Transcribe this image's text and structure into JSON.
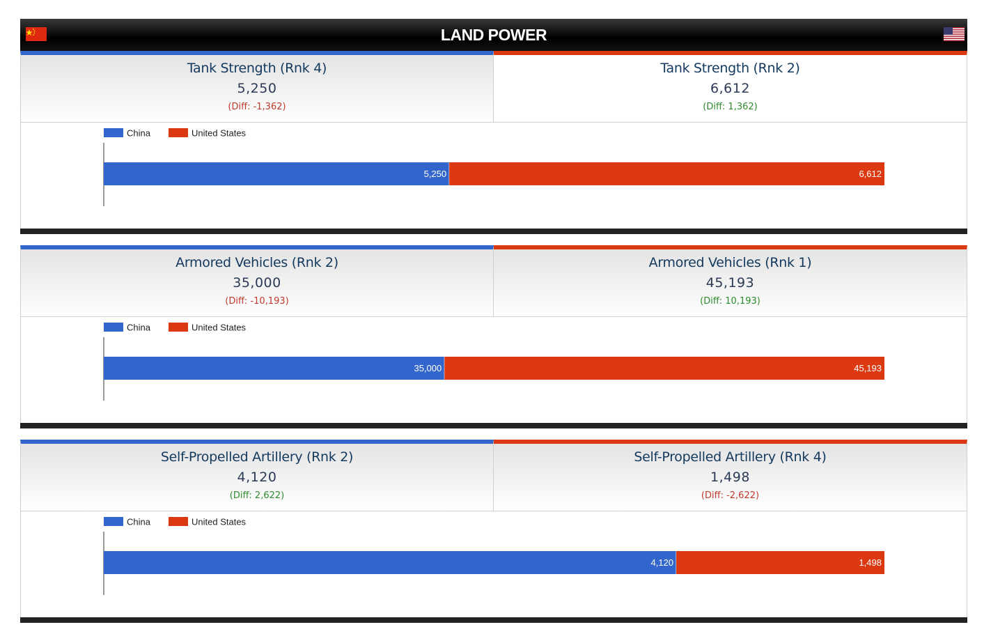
{
  "header": {
    "title": "LAND POWER",
    "left_flag_icon": "china-flag-icon",
    "right_flag_icon": "united-states-flag-icon"
  },
  "colors": {
    "china": "#3366cc",
    "united_states": "#dc3912",
    "negative_diff": "#c0392b",
    "positive_diff": "#2e8b2e"
  },
  "legend": {
    "china": "China",
    "united_states": "United States"
  },
  "sections": [
    {
      "left": {
        "title": "Tank Strength (Rnk 4)",
        "value": "5,250",
        "diff": "(Diff: -1,362)",
        "diff_sign": "neg"
      },
      "right": {
        "title": "Tank Strength (Rnk 2)",
        "value": "6,612",
        "diff": "(Diff: 1,362)",
        "diff_sign": "pos"
      }
    },
    {
      "left": {
        "title": "Armored Vehicles (Rnk 2)",
        "value": "35,000",
        "diff": "(Diff: -10,193)",
        "diff_sign": "neg"
      },
      "right": {
        "title": "Armored Vehicles (Rnk 1)",
        "value": "45,193",
        "diff": "(Diff: 10,193)",
        "diff_sign": "pos"
      }
    },
    {
      "left": {
        "title": "Self-Propelled Artillery (Rnk 2)",
        "value": "4,120",
        "diff": "(Diff: 2,622)",
        "diff_sign": "pos"
      },
      "right": {
        "title": "Self-Propelled Artillery (Rnk 4)",
        "value": "1,498",
        "diff": "(Diff: -2,622)",
        "diff_sign": "neg"
      }
    }
  ],
  "chart_data": [
    {
      "type": "bar",
      "stacked": true,
      "orientation": "horizontal",
      "categories": [
        ""
      ],
      "series": [
        {
          "name": "China",
          "values": [
            5250
          ],
          "labels": [
            "5,250"
          ]
        },
        {
          "name": "United States",
          "values": [
            6612
          ],
          "labels": [
            "6,612"
          ]
        }
      ],
      "legend_position": "top-left"
    },
    {
      "type": "bar",
      "stacked": true,
      "orientation": "horizontal",
      "categories": [
        ""
      ],
      "series": [
        {
          "name": "China",
          "values": [
            35000
          ],
          "labels": [
            "35,000"
          ]
        },
        {
          "name": "United States",
          "values": [
            45193
          ],
          "labels": [
            "45,193"
          ]
        }
      ],
      "legend_position": "top-left"
    },
    {
      "type": "bar",
      "stacked": true,
      "orientation": "horizontal",
      "categories": [
        ""
      ],
      "series": [
        {
          "name": "China",
          "values": [
            4120
          ],
          "labels": [
            "4,120"
          ]
        },
        {
          "name": "United States",
          "values": [
            1498
          ],
          "labels": [
            "1,498"
          ]
        }
      ],
      "legend_position": "top-left"
    }
  ]
}
